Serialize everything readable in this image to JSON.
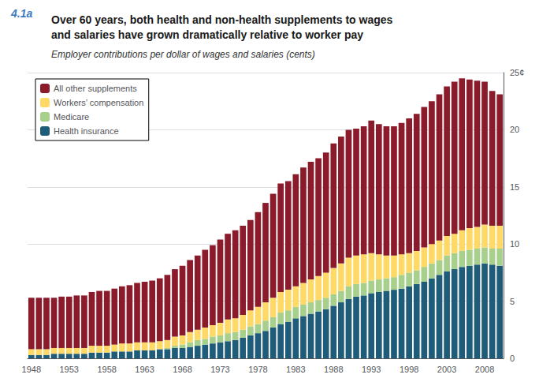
{
  "chart_data": {
    "type": "bar",
    "title": "Over 60 years, both health and non-health supplements to wages\nand salaries have grown dramatically relative to worker pay",
    "subtitle": "Employer contributions per dollar of wages and salaries (cents)",
    "annotations": [
      {
        "text": "4.1a",
        "color": "#3a7abf"
      }
    ],
    "categories": [
      "1948",
      null,
      null,
      null,
      null,
      "1953",
      null,
      null,
      null,
      null,
      "1958",
      null,
      null,
      null,
      null,
      "1963",
      null,
      null,
      null,
      null,
      "1968",
      null,
      null,
      null,
      null,
      "1973",
      null,
      null,
      null,
      null,
      "1978",
      null,
      null,
      null,
      null,
      "1983",
      null,
      null,
      null,
      null,
      "1988",
      null,
      null,
      null,
      null,
      "1993",
      null,
      null,
      null,
      null,
      "1998",
      null,
      null,
      null,
      null,
      "2003",
      null,
      null,
      null,
      null,
      "2008",
      null,
      null
    ],
    "series": [
      {
        "name": "Health insurance",
        "color": "#1f5c7a",
        "values": [
          0.3,
          0.3,
          0.3,
          0.4,
          0.4,
          0.4,
          0.4,
          0.4,
          0.5,
          0.5,
          0.5,
          0.6,
          0.6,
          0.6,
          0.7,
          0.7,
          0.7,
          0.8,
          0.8,
          0.9,
          0.9,
          1.0,
          1.1,
          1.2,
          1.3,
          1.4,
          1.5,
          1.6,
          1.8,
          2.0,
          2.2,
          2.4,
          2.7,
          3.0,
          3.2,
          3.5,
          3.7,
          3.9,
          4.1,
          4.3,
          4.6,
          4.9,
          5.2,
          5.4,
          5.5,
          5.7,
          5.8,
          5.9,
          6.0,
          6.1,
          6.3,
          6.5,
          6.7,
          7.0,
          7.3,
          7.6,
          7.8,
          8.0,
          8.1,
          8.2,
          8.3,
          8.2,
          8.1
        ]
      },
      {
        "name": "Medicare",
        "color": "#a8d08d",
        "values": [
          0.0,
          0.0,
          0.0,
          0.0,
          0.0,
          0.0,
          0.0,
          0.0,
          0.0,
          0.0,
          0.0,
          0.0,
          0.0,
          0.0,
          0.0,
          0.0,
          0.0,
          0.0,
          0.1,
          0.2,
          0.3,
          0.4,
          0.5,
          0.5,
          0.6,
          0.6,
          0.7,
          0.7,
          0.7,
          0.8,
          0.8,
          0.9,
          0.9,
          1.0,
          1.0,
          1.0,
          1.0,
          1.0,
          1.0,
          1.0,
          1.0,
          1.0,
          1.1,
          1.1,
          1.1,
          1.1,
          1.1,
          1.1,
          1.1,
          1.2,
          1.2,
          1.2,
          1.3,
          1.3,
          1.3,
          1.4,
          1.4,
          1.4,
          1.4,
          1.4,
          1.4,
          1.4,
          1.5
        ]
      },
      {
        "name": "Workers’ compensation",
        "color": "#ffd966",
        "values": [
          0.5,
          0.5,
          0.5,
          0.5,
          0.5,
          0.5,
          0.5,
          0.5,
          0.6,
          0.6,
          0.6,
          0.6,
          0.7,
          0.7,
          0.7,
          0.7,
          0.7,
          0.7,
          0.7,
          0.8,
          0.8,
          0.9,
          0.9,
          1.0,
          1.0,
          1.1,
          1.2,
          1.2,
          1.3,
          1.4,
          1.5,
          1.6,
          1.7,
          1.8,
          1.8,
          1.8,
          1.9,
          2.0,
          2.1,
          2.2,
          2.3,
          2.4,
          2.5,
          2.5,
          2.5,
          2.4,
          2.2,
          2.0,
          1.9,
          1.8,
          1.7,
          1.7,
          1.7,
          1.7,
          1.7,
          1.7,
          1.7,
          1.8,
          1.9,
          1.9,
          2.0,
          2.0,
          2.0
        ]
      },
      {
        "name": "All other supplements",
        "color": "#8b1a2b",
        "values": [
          4.5,
          4.5,
          4.5,
          4.4,
          4.5,
          4.5,
          4.6,
          4.6,
          4.7,
          4.8,
          4.8,
          4.9,
          5.0,
          5.1,
          5.2,
          5.3,
          5.4,
          5.5,
          5.7,
          5.9,
          6.1,
          6.3,
          6.5,
          6.8,
          7.0,
          7.3,
          7.5,
          7.7,
          7.8,
          7.9,
          8.3,
          8.7,
          9.1,
          9.5,
          9.5,
          9.8,
          10.1,
          10.3,
          10.3,
          10.5,
          10.9,
          11.1,
          11.2,
          11.1,
          11.2,
          11.6,
          11.4,
          11.3,
          11.3,
          11.5,
          11.8,
          12.0,
          12.3,
          12.5,
          12.8,
          13.1,
          13.3,
          13.3,
          13.0,
          12.8,
          12.5,
          11.8,
          11.5
        ]
      }
    ],
    "ylim": [
      0,
      25
    ],
    "yticks": [
      0,
      5,
      10,
      15,
      20,
      {
        "value": 25,
        "label": "25¢"
      }
    ],
    "stacked": true,
    "grid": true,
    "legend": "upper left"
  }
}
